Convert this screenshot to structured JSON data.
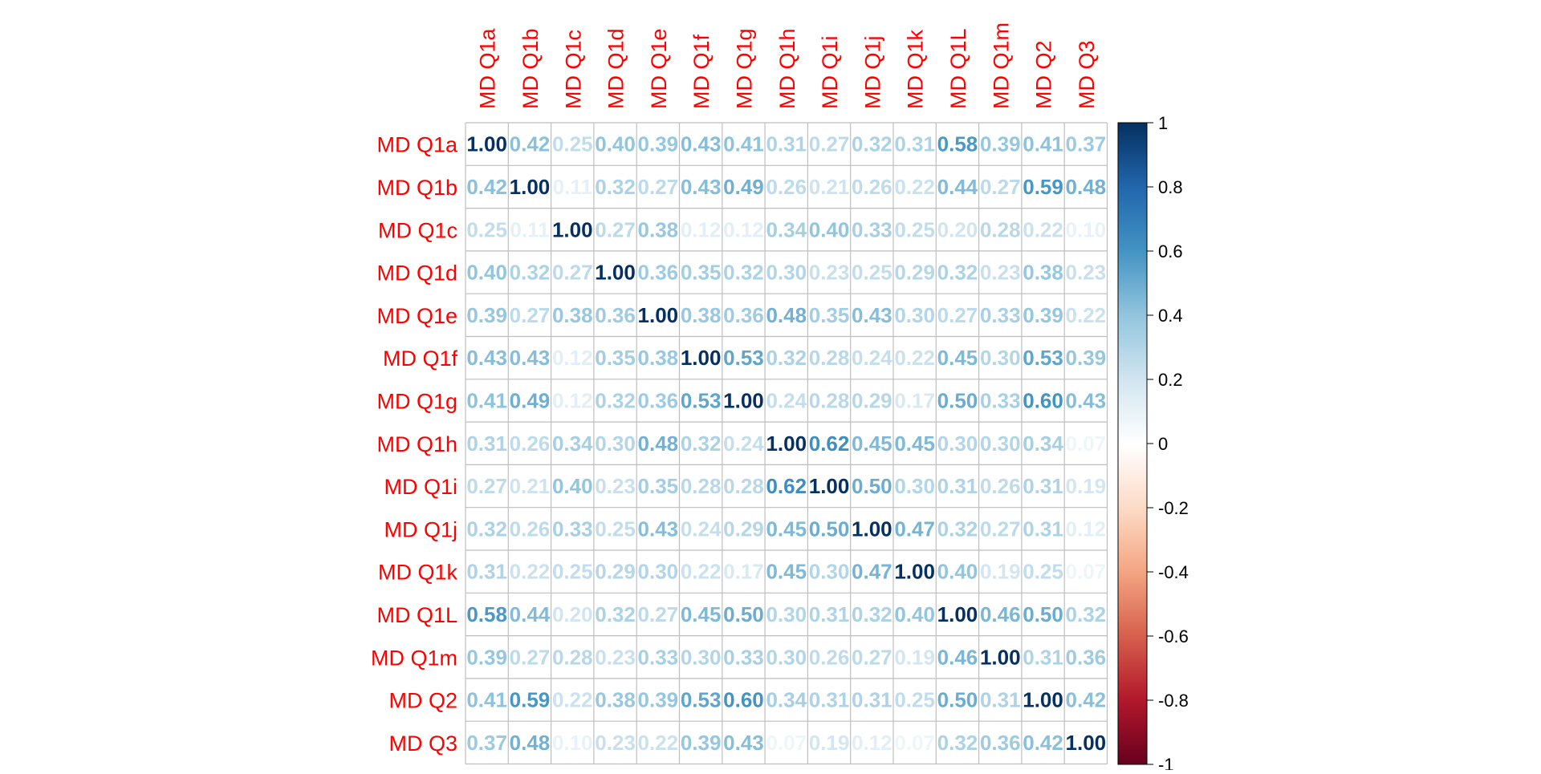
{
  "chart_data": {
    "type": "heatmap",
    "subtype": "correlation-matrix",
    "labels": [
      "MD Q1a",
      "MD Q1b",
      "MD Q1c",
      "MD Q1d",
      "MD Q1e",
      "MD Q1f",
      "MD Q1g",
      "MD Q1h",
      "MD Q1i",
      "MD Q1j",
      "MD Q1k",
      "MD Q1L",
      "MD Q1m",
      "MD Q2",
      "MD Q3"
    ],
    "label_color": "#FF0000",
    "cell_labels": [
      [
        "1.00",
        "0.42",
        "0.25",
        "0.40",
        "0.39",
        "0.43",
        "0.41",
        "0.31",
        "0.27",
        "0.32",
        "0.31",
        "0.58",
        "0.39",
        "0.41",
        "0.37"
      ],
      [
        "0.42",
        "1.00",
        "0.11",
        "0.32",
        "0.27",
        "0.43",
        "0.49",
        "0.26",
        "0.21",
        "0.26",
        "0.22",
        "0.44",
        "0.27",
        "0.59",
        "0.48"
      ],
      [
        "0.25",
        "0.11",
        "1.00",
        "0.27",
        "0.38",
        "0.12",
        "0.12",
        "0.34",
        "0.40",
        "0.33",
        "0.25",
        "0.20",
        "0.28",
        "0.22",
        "0.10"
      ],
      [
        "0.40",
        "0.32",
        "0.27",
        "1.00",
        "0.36",
        "0.35",
        "0.32",
        "0.30",
        "0.23",
        "0.25",
        "0.29",
        "0.32",
        "0.23",
        "0.38",
        "0.23"
      ],
      [
        "0.39",
        "0.27",
        "0.38",
        "0.36",
        "1.00",
        "0.38",
        "0.36",
        "0.48",
        "0.35",
        "0.43",
        "0.30",
        "0.27",
        "0.33",
        "0.39",
        "0.22"
      ],
      [
        "0.43",
        "0.43",
        "0.12",
        "0.35",
        "0.38",
        "1.00",
        "0.53",
        "0.32",
        "0.28",
        "0.24",
        "0.22",
        "0.45",
        "0.30",
        "0.53",
        "0.39"
      ],
      [
        "0.41",
        "0.49",
        "0.12",
        "0.32",
        "0.36",
        "0.53",
        "1.00",
        "0.24",
        "0.28",
        "0.29",
        "0.17",
        "0.50",
        "0.33",
        "0.60",
        "0.43"
      ],
      [
        "0.31",
        "0.26",
        "0.34",
        "0.30",
        "0.48",
        "0.32",
        "0.24",
        "1.00",
        "0.62",
        "0.45",
        "0.45",
        "0.30",
        "0.30",
        "0.34",
        "0.07"
      ],
      [
        "0.27",
        "0.21",
        "0.40",
        "0.23",
        "0.35",
        "0.28",
        "0.28",
        "0.62",
        "1.00",
        "0.50",
        "0.30",
        "0.31",
        "0.26",
        "0.31",
        "0.19"
      ],
      [
        "0.32",
        "0.26",
        "0.33",
        "0.25",
        "0.43",
        "0.24",
        "0.29",
        "0.45",
        "0.50",
        "1.00",
        "0.47",
        "0.32",
        "0.27",
        "0.31",
        "0.12"
      ],
      [
        "0.31",
        "0.22",
        "0.25",
        "0.29",
        "0.30",
        "0.22",
        "0.17",
        "0.45",
        "0.30",
        "0.47",
        "1.00",
        "0.40",
        "0.19",
        "0.25",
        "0.07"
      ],
      [
        "0.58",
        "0.44",
        "0.20",
        "0.32",
        "0.27",
        "0.45",
        "0.50",
        "0.30",
        "0.31",
        "0.32",
        "0.40",
        "1.00",
        "0.46",
        "0.50",
        "0.32"
      ],
      [
        "0.39",
        "0.27",
        "0.28",
        "0.23",
        "0.33",
        "0.30",
        "0.33",
        "0.30",
        "0.26",
        "0.27",
        "0.19",
        "0.46",
        "1.00",
        "0.31",
        "0.36"
      ],
      [
        "0.41",
        "0.59",
        "0.22",
        "0.38",
        "0.39",
        "0.53",
        "0.60",
        "0.34",
        "0.31",
        "0.31",
        "0.25",
        "0.50",
        "0.31",
        "1.00",
        "0.42"
      ],
      [
        "0.37",
        "0.48",
        "0.10",
        "0.23",
        "0.22",
        "0.39",
        "0.43",
        "0.07",
        "0.19",
        "0.12",
        "0.07",
        "0.32",
        "0.36",
        "0.42",
        "1.00"
      ]
    ],
    "colorbar": {
      "range": [
        -1,
        1
      ],
      "ticks": [
        "1",
        "0.8",
        "0.6",
        "0.4",
        "0.2",
        "0",
        "-0.2",
        "-0.4",
        "-0.6",
        "-0.8",
        "-1"
      ],
      "tick_values": [
        1,
        0.8,
        0.6,
        0.4,
        0.2,
        0,
        -0.2,
        -0.4,
        -0.6,
        -0.8,
        -1
      ],
      "palette": [
        "#67001F",
        "#B2182B",
        "#D6604D",
        "#F4A582",
        "#FDDBC7",
        "#FFFFFF",
        "#D1E5F0",
        "#92C5DE",
        "#4393C3",
        "#2166AC",
        "#053061"
      ]
    },
    "grid": true,
    "legend_position": "right"
  }
}
